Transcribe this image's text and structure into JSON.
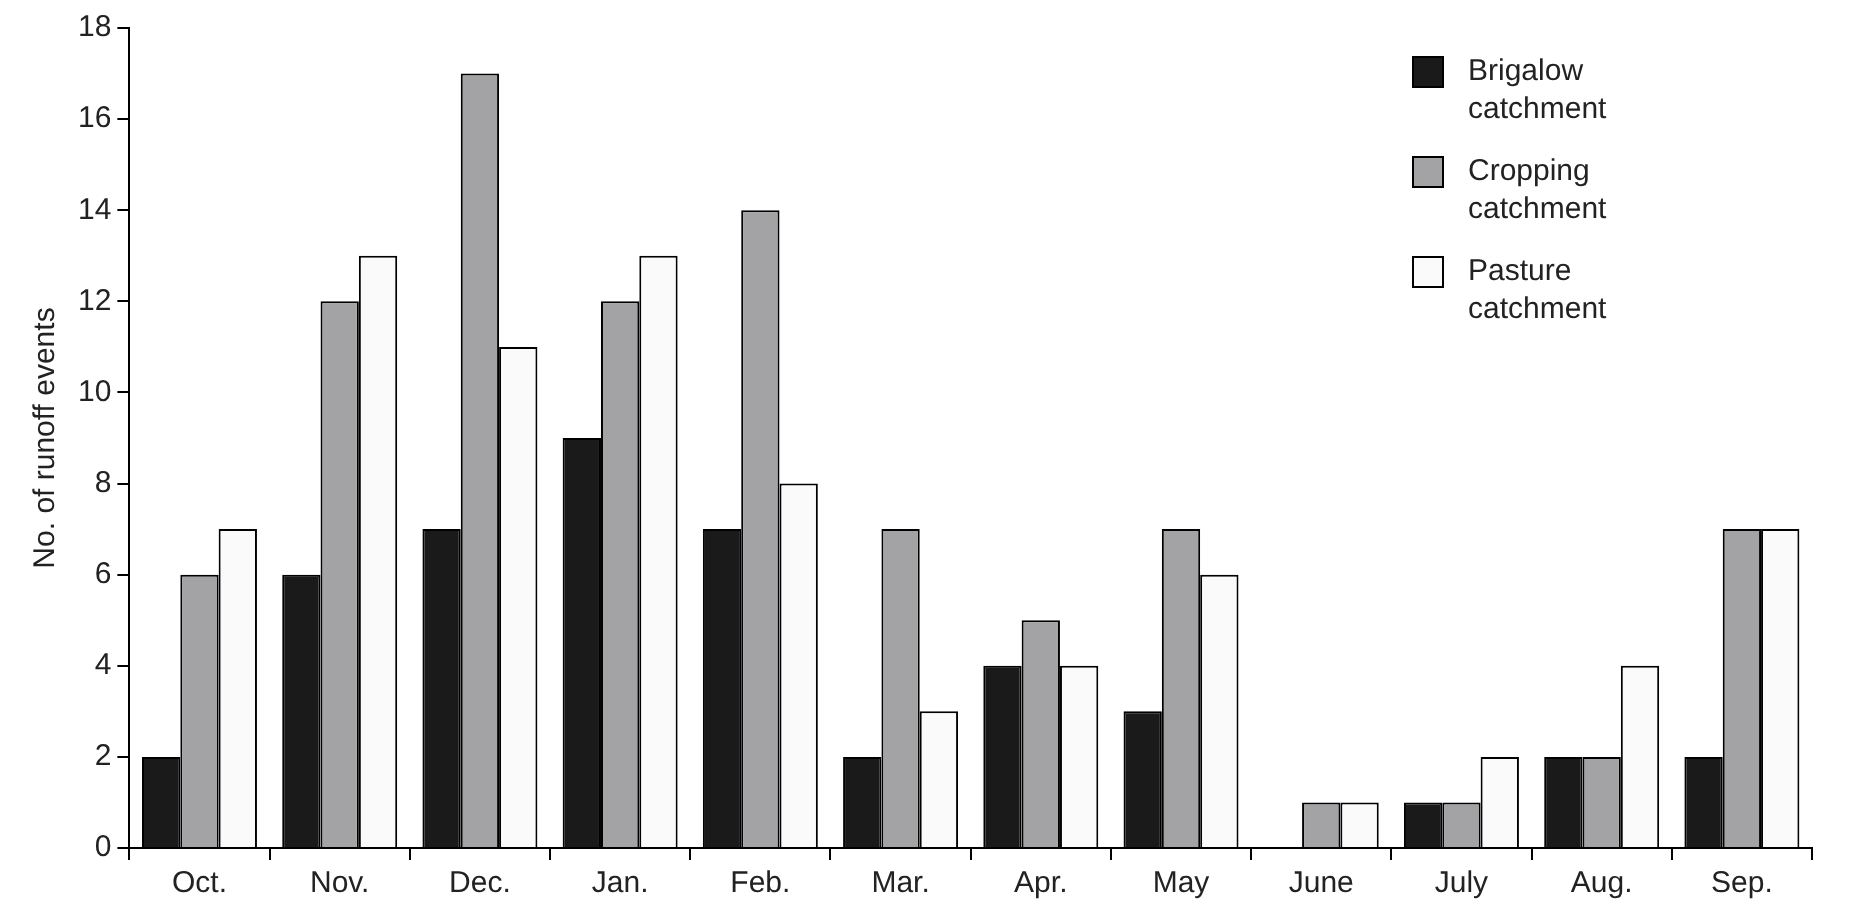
{
  "chart_data": {
    "type": "bar",
    "ylabel": "No. of runoff events",
    "categories": [
      "Oct.",
      "Nov.",
      "Dec.",
      "Jan.",
      "Feb.",
      "Mar.",
      "Apr.",
      "May",
      "June",
      "July",
      "Aug.",
      "Sep."
    ],
    "series": [
      {
        "name": "Brigalow catchment",
        "color": "#1a1a1a",
        "values": [
          2,
          6,
          7,
          9,
          7,
          2,
          4,
          3,
          0,
          1,
          2,
          2
        ]
      },
      {
        "name": "Cropping catchment",
        "color": "#a3a3a6",
        "values": [
          6,
          12,
          17,
          12,
          14,
          7,
          5,
          7,
          1,
          1,
          2,
          7
        ]
      },
      {
        "name": "Pasture catchment",
        "color": "#fafafa",
        "values": [
          7,
          13,
          11,
          13,
          8,
          3,
          4,
          6,
          1,
          2,
          4,
          7
        ]
      }
    ],
    "ylim": [
      0,
      18
    ],
    "yticks": [
      0,
      2,
      4,
      6,
      8,
      10,
      12,
      14,
      16,
      18
    ],
    "grid": false,
    "legend": "top right"
  }
}
